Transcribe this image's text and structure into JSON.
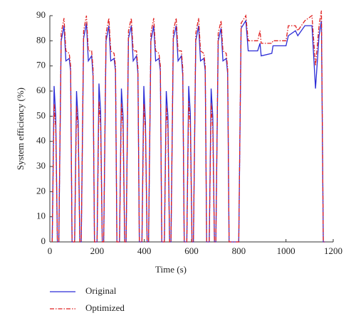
{
  "chart_data": {
    "type": "line",
    "x_label": "Time (s)",
    "y_label": "System efficiency (%)",
    "x": [
      10,
      18,
      25,
      32,
      38,
      48,
      60,
      68,
      82,
      88,
      94,
      100,
      105,
      113,
      120,
      127,
      133,
      143,
      155,
      163,
      177,
      183,
      189,
      195,
      200,
      208,
      215,
      222,
      228,
      238,
      250,
      258,
      272,
      278,
      284,
      290,
      295,
      303,
      310,
      317,
      323,
      333,
      345,
      353,
      367,
      373,
      379,
      385,
      390,
      398,
      405,
      412,
      418,
      428,
      440,
      448,
      462,
      468,
      474,
      480,
      485,
      493,
      500,
      507,
      513,
      523,
      535,
      543,
      557,
      563,
      569,
      575,
      580,
      588,
      595,
      602,
      608,
      618,
      630,
      638,
      652,
      658,
      664,
      670,
      675,
      683,
      690,
      697,
      703,
      713,
      725,
      733,
      747,
      753,
      759,
      765,
      790,
      800,
      810,
      830,
      840,
      880,
      890,
      895,
      940,
      945,
      1000,
      1010,
      1040,
      1050,
      1080,
      1110,
      1125,
      1140,
      1150,
      1158,
      1165
    ],
    "series": [
      {
        "name": "Original",
        "color": "#2b2bd6",
        "linestyle": "solid",
        "values": [
          0,
          62,
          50,
          0,
          0,
          80,
          86,
          72,
          73,
          68,
          0,
          0,
          0,
          60,
          48,
          0,
          0,
          81,
          87,
          72,
          74,
          66,
          0,
          0,
          0,
          63,
          52,
          0,
          0,
          80,
          86,
          72,
          73,
          68,
          0,
          0,
          0,
          61,
          50,
          0,
          0,
          81,
          86,
          72,
          74,
          67,
          0,
          0,
          0,
          62,
          47,
          0,
          0,
          80,
          86,
          72,
          73,
          68,
          0,
          0,
          0,
          60,
          50,
          0,
          0,
          81,
          86,
          72,
          74,
          66,
          0,
          0,
          0,
          62,
          51,
          0,
          0,
          80,
          86,
          72,
          73,
          68,
          0,
          0,
          0,
          61,
          50,
          0,
          0,
          80,
          85,
          72,
          73,
          67,
          0,
          0,
          0,
          0,
          85,
          88,
          76,
          76,
          79,
          74,
          75,
          78,
          78,
          82,
          84,
          82,
          86,
          86,
          61,
          82,
          88,
          0,
          0
        ]
      },
      {
        "name": "Optimized",
        "color": "#e02020",
        "linestyle": "dashdot",
        "values": [
          0,
          55,
          45,
          0,
          0,
          83,
          89,
          76,
          75,
          70,
          0,
          0,
          0,
          54,
          44,
          0,
          0,
          84,
          90,
          76,
          76,
          69,
          0,
          0,
          0,
          56,
          46,
          0,
          0,
          83,
          89,
          76,
          75,
          70,
          0,
          0,
          0,
          55,
          45,
          0,
          0,
          84,
          89,
          76,
          76,
          69,
          0,
          0,
          0,
          55,
          44,
          0,
          0,
          83,
          89,
          76,
          75,
          70,
          0,
          0,
          0,
          54,
          45,
          0,
          0,
          84,
          89,
          76,
          76,
          69,
          0,
          0,
          0,
          56,
          46,
          0,
          0,
          83,
          89,
          76,
          75,
          70,
          0,
          0,
          0,
          55,
          45,
          0,
          0,
          83,
          88,
          76,
          75,
          69,
          0,
          0,
          0,
          0,
          87,
          90,
          80,
          80,
          84,
          79,
          79,
          80,
          80,
          86,
          86,
          84,
          88,
          90,
          70,
          86,
          92,
          0,
          0
        ]
      }
    ],
    "xlim": [
      0,
      1200
    ],
    "ylim": [
      0,
      90
    ],
    "xticks": [
      0,
      200,
      400,
      600,
      800,
      1000,
      1200
    ],
    "yticks": [
      0,
      10,
      20,
      30,
      40,
      50,
      60,
      70,
      80,
      90
    ],
    "grid": false,
    "legend": "bottom-left"
  }
}
